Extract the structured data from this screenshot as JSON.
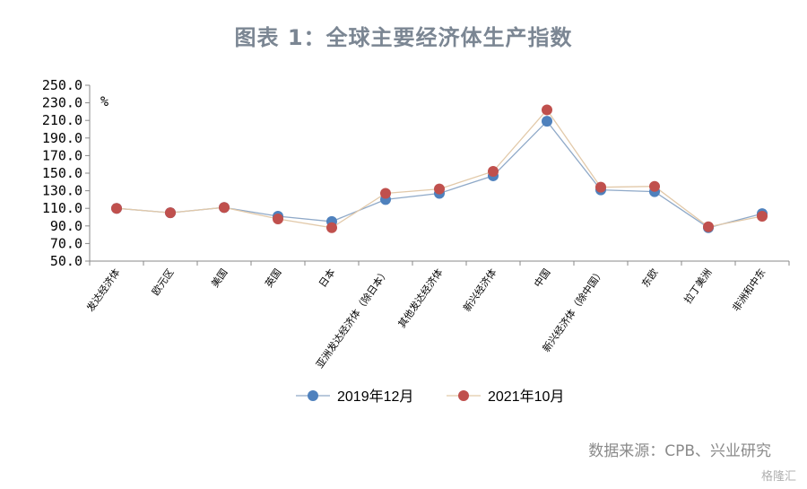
{
  "title": "图表 1：全球主要经济体生产指数",
  "source": "数据来源：CPB、兴业研究",
  "watermark": "格隆汇",
  "chart_data": {
    "type": "line",
    "title": "图表 1：全球主要经济体生产指数",
    "unit": "%",
    "xlabel": "",
    "ylabel": "",
    "ylim": [
      50,
      250
    ],
    "yticks": [
      "250.0",
      "230.0",
      "210.0",
      "190.0",
      "170.0",
      "150.0",
      "130.0",
      "110.0",
      "90.0",
      "70.0",
      "50.0"
    ],
    "categories": [
      "发达经济体",
      "欧元区",
      "美国",
      "英国",
      "日本",
      "亚洲发达经济体（除日本）",
      "其他发达经济体",
      "新兴经济体",
      "中国",
      "新兴经济体（除中国）",
      "东欧",
      "拉丁美洲",
      "非洲和中东"
    ],
    "series": [
      {
        "name": "2019年12月",
        "color": "#4f81bd",
        "values": [
          110,
          105,
          111,
          101,
          95,
          120,
          127,
          147,
          209,
          131,
          129,
          88,
          104
        ]
      },
      {
        "name": "2021年10月",
        "color": "#c0504d",
        "values": [
          110,
          105,
          111,
          98,
          88,
          127,
          132,
          152,
          222,
          134,
          135,
          89,
          101
        ]
      }
    ],
    "legend_position": "bottom",
    "grid": false
  }
}
